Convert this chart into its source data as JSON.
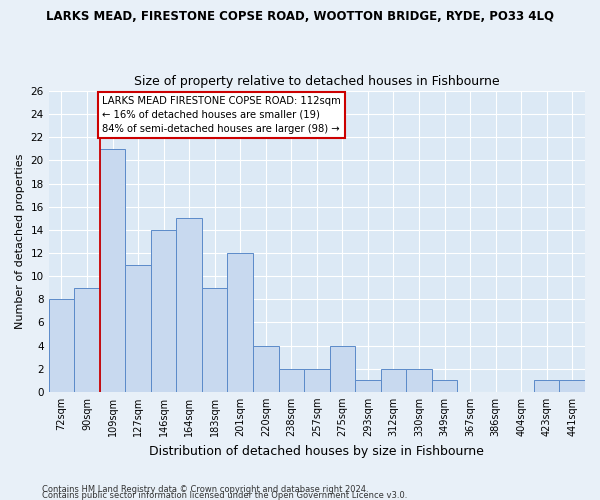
{
  "title": "LARKS MEAD, FIRESTONE COPSE ROAD, WOOTTON BRIDGE, RYDE, PO33 4LQ",
  "subtitle": "Size of property relative to detached houses in Fishbourne",
  "xlabel": "Distribution of detached houses by size in Fishbourne",
  "ylabel": "Number of detached properties",
  "categories": [
    "72sqm",
    "90sqm",
    "109sqm",
    "127sqm",
    "146sqm",
    "164sqm",
    "183sqm",
    "201sqm",
    "220sqm",
    "238sqm",
    "257sqm",
    "275sqm",
    "293sqm",
    "312sqm",
    "330sqm",
    "349sqm",
    "367sqm",
    "386sqm",
    "404sqm",
    "423sqm",
    "441sqm"
  ],
  "values": [
    8,
    9,
    21,
    11,
    14,
    15,
    9,
    12,
    4,
    2,
    2,
    4,
    1,
    2,
    2,
    1,
    0,
    0,
    0,
    1,
    1
  ],
  "bar_color": "#c8d9ef",
  "bar_edge_color": "#5b8ac9",
  "highlight_index": 2,
  "highlight_line_color": "#cc0000",
  "ylim": [
    0,
    26
  ],
  "yticks": [
    0,
    2,
    4,
    6,
    8,
    10,
    12,
    14,
    16,
    18,
    20,
    22,
    24,
    26
  ],
  "annotation_text": "LARKS MEAD FIRESTONE COPSE ROAD: 112sqm\n← 16% of detached houses are smaller (19)\n84% of semi-detached houses are larger (98) →",
  "annotation_box_color": "#ffffff",
  "annotation_box_edge": "#cc0000",
  "footer1": "Contains HM Land Registry data © Crown copyright and database right 2024.",
  "footer2": "Contains public sector information licensed under the Open Government Licence v3.0.",
  "bg_color": "#e8f0f8",
  "plot_bg_color": "#dce9f5"
}
